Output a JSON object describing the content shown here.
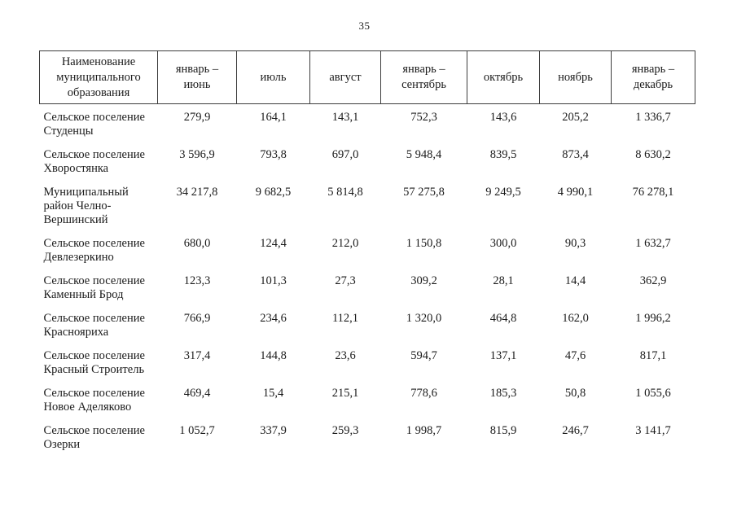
{
  "page": {
    "number": "35"
  },
  "table": {
    "header": {
      "name_column": "Наименование\nмуниципального\nобразования",
      "period_columns": [
        "январь –\nиюнь",
        "июль",
        "август",
        "январь –\nсентябрь",
        "октябрь",
        "ноябрь",
        "январь –\nдекабрь"
      ]
    },
    "rows": [
      {
        "name": "Сельское поселение\nСтуденцы",
        "values": [
          "279,9",
          "164,1",
          "143,1",
          "752,3",
          "143,6",
          "205,2",
          "1 336,7"
        ]
      },
      {
        "name": "Сельское поселение\nХворостянка",
        "values": [
          "3 596,9",
          "793,8",
          "697,0",
          "5 948,4",
          "839,5",
          "873,4",
          "8 630,2"
        ]
      },
      {
        "name": "Муниципальный\nрайон Челно-\nВершинский",
        "values": [
          "34 217,8",
          "9 682,5",
          "5 814,8",
          "57 275,8",
          "9 249,5",
          "4 990,1",
          "76 278,1"
        ]
      },
      {
        "name": "Сельское поселение\nДевлезеркино",
        "values": [
          "680,0",
          "124,4",
          "212,0",
          "1 150,8",
          "300,0",
          "90,3",
          "1 632,7"
        ]
      },
      {
        "name": "Сельское поселение\nКаменный Брод",
        "values": [
          "123,3",
          "101,3",
          "27,3",
          "309,2",
          "28,1",
          "14,4",
          "362,9"
        ]
      },
      {
        "name": "Сельское поселение\nКраснояриха",
        "values": [
          "766,9",
          "234,6",
          "112,1",
          "1 320,0",
          "464,8",
          "162,0",
          "1 996,2"
        ]
      },
      {
        "name": "Сельское поселение\nКрасный Строитель",
        "values": [
          "317,4",
          "144,8",
          "23,6",
          "594,7",
          "137,1",
          "47,6",
          "817,1"
        ]
      },
      {
        "name": "Сельское поселение\nНовое Аделяково",
        "values": [
          "469,4",
          "15,4",
          "215,1",
          "778,6",
          "185,3",
          "50,8",
          "1 055,6"
        ]
      },
      {
        "name": "Сельское поселение\nОзерки",
        "values": [
          "1 052,7",
          "337,9",
          "259,3",
          "1 998,7",
          "815,9",
          "246,7",
          "3 141,7"
        ]
      }
    ]
  }
}
